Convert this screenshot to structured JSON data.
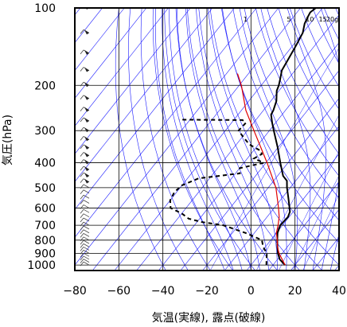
{
  "chart_data": {
    "type": "line",
    "title": "",
    "xlabel": "気温(実線), 露点(破線)",
    "ylabel": "気圧(hPa)",
    "x_axis": {
      "range": [
        -80,
        40
      ],
      "ticks": [
        -80,
        -60,
        -40,
        -20,
        0,
        20,
        40
      ]
    },
    "y_axis": {
      "scale": "log",
      "range": [
        1050,
        100
      ],
      "ticks": [
        100,
        200,
        300,
        400,
        500,
        600,
        700,
        800,
        900,
        1000
      ]
    },
    "skew_per_decade_c": 92.5,
    "mixing_ratio_labels": [
      "1",
      "5",
      "10",
      "15",
      "20g"
    ],
    "mixing_ratio_values": [
      1,
      5,
      10,
      15,
      20
    ],
    "colors": {
      "temperature": "#000000",
      "dewpoint": "#000000",
      "parcel": "#e00000",
      "background_lines": "#1a1aff",
      "grid": "#000000"
    },
    "series": [
      {
        "style": "solid",
        "points": [
          [
            1000,
            15.5
          ],
          [
            950,
            11
          ],
          [
            900,
            8
          ],
          [
            850,
            5.5
          ],
          [
            800,
            3
          ],
          [
            750,
            0.5
          ],
          [
            700,
            -1
          ],
          [
            650,
            -0.5
          ],
          [
            620,
            -1.5
          ],
          [
            600,
            -3
          ],
          [
            550,
            -7
          ],
          [
            500,
            -11.5
          ],
          [
            470,
            -14
          ],
          [
            450,
            -17.5
          ],
          [
            400,
            -23.5
          ],
          [
            350,
            -30
          ],
          [
            300,
            -38
          ],
          [
            280,
            -41.5
          ],
          [
            260,
            -45
          ],
          [
            250,
            -45.5
          ],
          [
            230,
            -47.5
          ],
          [
            210,
            -51
          ],
          [
            200,
            -52
          ],
          [
            190,
            -53.5
          ],
          [
            175,
            -56
          ],
          [
            160,
            -57
          ],
          [
            140,
            -58.5
          ],
          [
            125,
            -60
          ],
          [
            115,
            -62.5
          ],
          [
            108,
            -63.5
          ],
          [
            104,
            -64
          ],
          [
            100,
            -63
          ]
        ]
      },
      {
        "style": "dashed",
        "points": [
          [
            1000,
            7
          ],
          [
            950,
            5
          ],
          [
            900,
            3
          ],
          [
            850,
            -1
          ],
          [
            800,
            -4
          ],
          [
            750,
            -14
          ],
          [
            700,
            -27
          ],
          [
            680,
            -38
          ],
          [
            660,
            -45
          ],
          [
            630,
            -50
          ],
          [
            600,
            -57
          ],
          [
            560,
            -60
          ],
          [
            520,
            -61
          ],
          [
            490,
            -60
          ],
          [
            460,
            -55
          ],
          [
            440,
            -38
          ],
          [
            420,
            -40
          ],
          [
            400,
            -31
          ],
          [
            385,
            -37
          ],
          [
            370,
            -35
          ],
          [
            360,
            -36.5
          ],
          [
            340,
            -44
          ],
          [
            320,
            -49
          ],
          [
            300,
            -54
          ],
          [
            280,
            -53.5
          ],
          [
            273,
            -56
          ],
          [
            272,
            -85
          ]
        ]
      },
      {
        "style": "red",
        "points": [
          [
            1000,
            15.5
          ],
          [
            900,
            8.5
          ],
          [
            850,
            5.5
          ],
          [
            800,
            3
          ],
          [
            750,
            0
          ],
          [
            700,
            -2
          ],
          [
            650,
            -4.5
          ],
          [
            600,
            -8
          ],
          [
            500,
            -16.5
          ],
          [
            400,
            -29.5
          ],
          [
            300,
            -47
          ],
          [
            250,
            -58
          ],
          [
            200,
            -69
          ],
          [
            180,
            -75
          ]
        ]
      }
    ],
    "wind_barbs_note": "wind barb column along left edge"
  }
}
